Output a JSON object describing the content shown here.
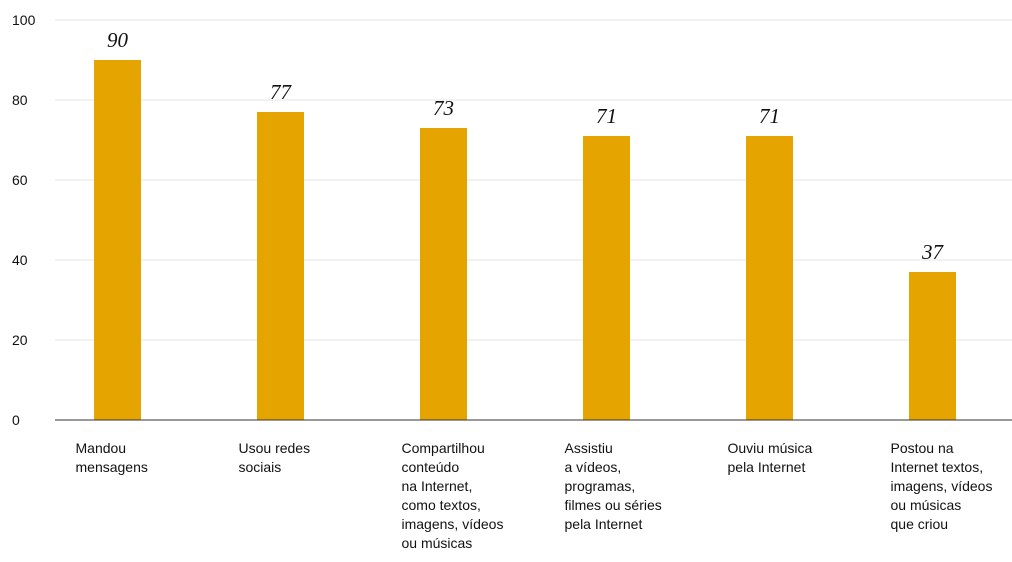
{
  "chart_data": {
    "type": "bar",
    "categories": [
      "Mandou\nmensagens",
      "Usou redes\nsociais",
      "Compartilhou\nconteúdo\nna Internet,\ncomo textos,\nimagens, vídeos\nou músicas",
      "Assistiu\na vídeos,\nprogramas,\nfilmes ou séries\npela Internet",
      "Ouviu música\npela Internet",
      "Postou na\nInternet textos,\nimagens, vídeos\nou músicas\nque criou"
    ],
    "values": [
      90,
      77,
      73,
      71,
      71,
      37
    ],
    "value_labels": [
      "90",
      "77",
      "73",
      "71",
      "71",
      "37"
    ],
    "ylim": [
      0,
      100
    ],
    "yticks": [
      "0",
      "20",
      "40",
      "60",
      "80",
      "100"
    ],
    "grid": true,
    "colors": {
      "bar": "#E5A400",
      "grid": "#e6e6e6",
      "axis": "#333333"
    }
  }
}
